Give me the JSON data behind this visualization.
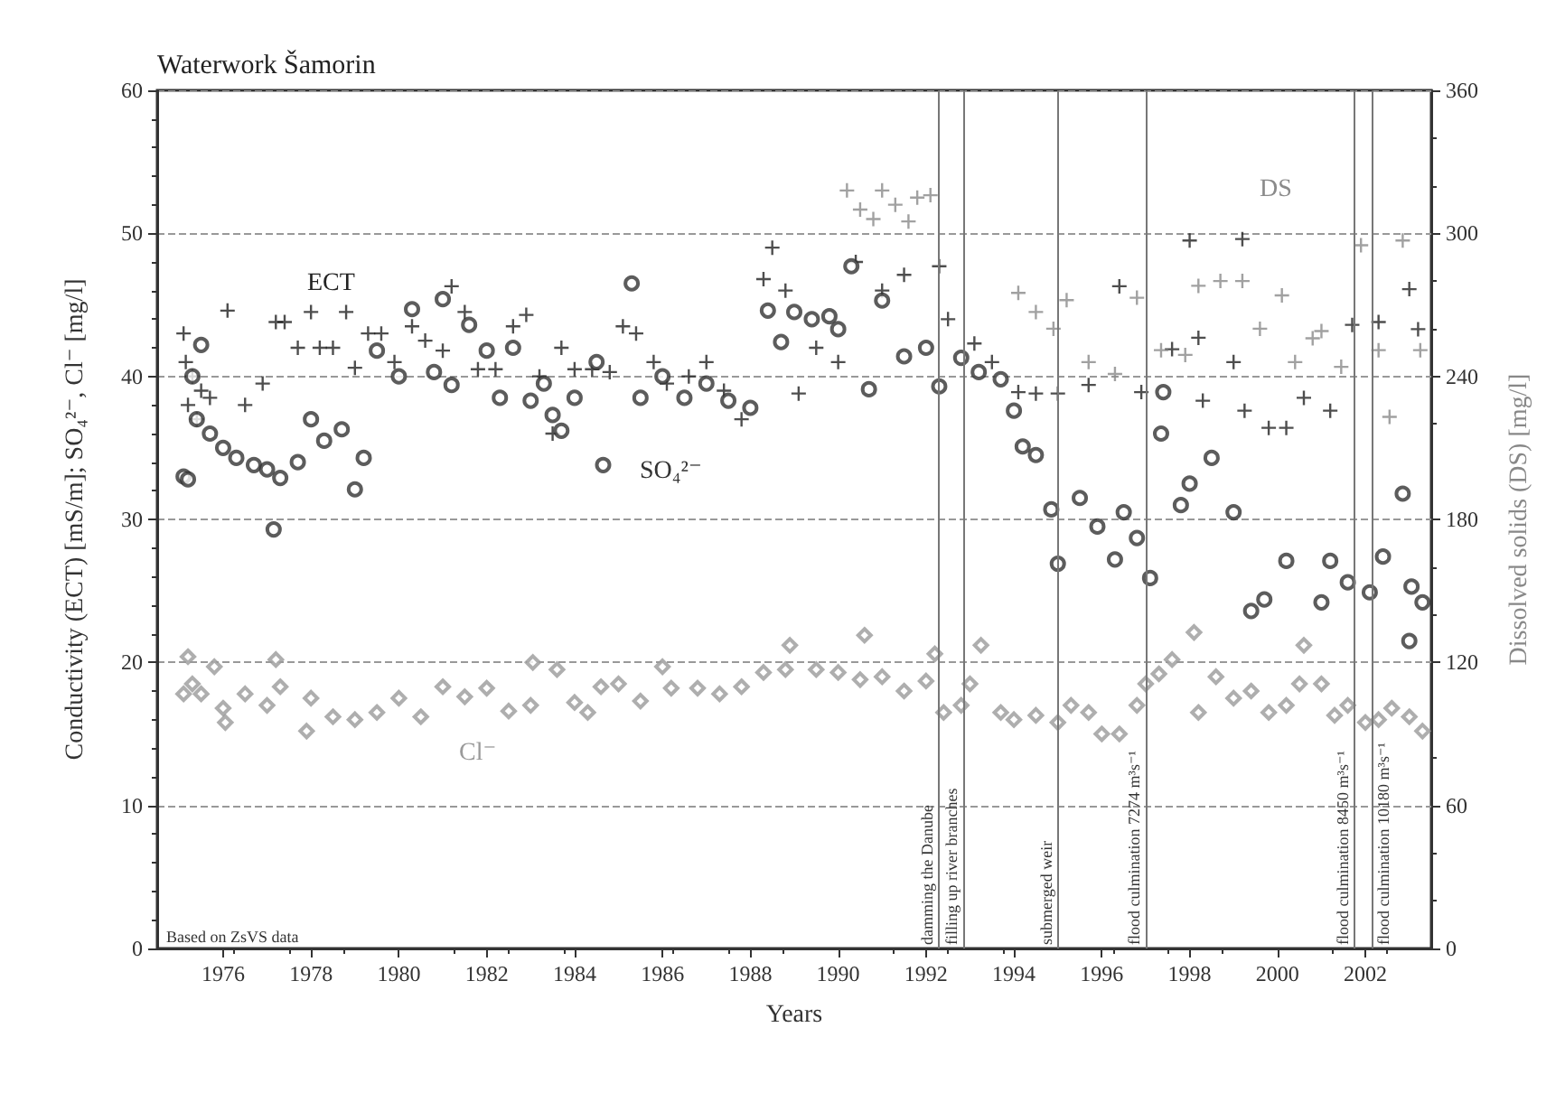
{
  "chart_data": {
    "type": "scatter",
    "title": "Waterwork Šamorin",
    "xlabel": "Years",
    "ylabel": "Conductivity (ECT) [mS/m]; SO₄²⁻, Cl⁻ [mg/l]",
    "y2label": "Dissolved solids (DS) [mg/l]",
    "xlim": [
      1974.5,
      2003.5
    ],
    "xticks": [
      1976,
      1978,
      1980,
      1982,
      1984,
      1986,
      1988,
      1990,
      1992,
      1994,
      1996,
      1998,
      2000,
      2002
    ],
    "ylim": [
      0,
      60
    ],
    "yticks": [
      0,
      10,
      20,
      30,
      40,
      50,
      60
    ],
    "y2lim": [
      0,
      360
    ],
    "y2ticks": [
      0,
      60,
      120,
      180,
      240,
      300,
      360
    ],
    "grid": "y",
    "legend": false,
    "annotations": [
      "Based on ZsVS data"
    ],
    "ref_lines": [
      {
        "axis": "x",
        "value": 1992.3,
        "label": "damming the Danube"
      },
      {
        "axis": "x",
        "value": 1992.85,
        "label": "filling up river branches"
      },
      {
        "axis": "x",
        "value": 1995.0,
        "label": "submerged weir"
      },
      {
        "axis": "x",
        "value": 1997.0,
        "label": "flood culmination 7274 m³s⁻¹"
      },
      {
        "axis": "x",
        "value": 2001.75,
        "label": "flood culmination 8450 m³s⁻¹"
      },
      {
        "axis": "x",
        "value": 2002.15,
        "label": "flood culmination 10180 m³s⁻¹"
      }
    ],
    "series": [
      {
        "name": "ECT",
        "color": "#222222",
        "marker": "cross",
        "x": [
          1975.1,
          1975.15,
          1975.2,
          1975.3,
          1975.4,
          1975.5,
          1975.7,
          1976.1,
          1976.5,
          1976.9,
          1977.2,
          1977.4,
          1977.7,
          1978.0,
          1978.2,
          1978.5,
          1978.8,
          1979.0,
          1979.3,
          1979.6,
          1979.9,
          1980.3,
          1980.6,
          1981.0,
          1981.2,
          1981.5,
          1981.8,
          1982.2,
          1982.6,
          1982.9,
          1983.2,
          1983.5,
          1983.7,
          1984.0,
          1984.4,
          1984.8,
          1985.1,
          1985.4,
          1985.8,
          1986.1,
          1986.6,
          1987.0,
          1987.4,
          1987.8,
          1988.3,
          1988.5,
          1988.8,
          1989.1,
          1989.5,
          1990.0,
          1990.4,
          1991.0,
          1991.5,
          1992.3,
          1992.5,
          1993.1,
          1993.5,
          1994.1,
          1994.5,
          1995.0,
          1995.7,
          1996.4,
          1996.9,
          1997.6,
          1998.0,
          1998.2,
          1998.3,
          1999.0,
          1999.2,
          1999.25,
          1999.8,
          2000.2,
          2000.6,
          2001.2,
          2001.7,
          2002.3,
          2003.0,
          2003.2
        ],
        "values": [
          43,
          41,
          38,
          40,
          37,
          39,
          38.5,
          44.6,
          38,
          39.5,
          43.8,
          43.8,
          42,
          44.5,
          42,
          42,
          44.5,
          40.6,
          43,
          43,
          41,
          43.5,
          42.5,
          41.8,
          46.3,
          44.5,
          40.5,
          40.5,
          43.5,
          44.3,
          40,
          36,
          42,
          40.5,
          40.5,
          40.3,
          43.5,
          43,
          41,
          39.5,
          40,
          41,
          39,
          37,
          46.8,
          49,
          46,
          38.8,
          42,
          41,
          48,
          46,
          47.1,
          47.7,
          44,
          42.3,
          41,
          38.9,
          38.8,
          38.8,
          39.4,
          46.3,
          38.9,
          41.9,
          49.5,
          42.7,
          38.3,
          41,
          49.6,
          37.6,
          36.4,
          36.4,
          38.5,
          37.6,
          43.6,
          43.8,
          46.1,
          43.3
        ]
      },
      {
        "name": "SO₄²⁻",
        "color": "#333333",
        "marker": "circle",
        "x": [
          1975.1,
          1975.2,
          1975.3,
          1975.4,
          1975.5,
          1975.7,
          1976.0,
          1976.3,
          1976.7,
          1977.0,
          1977.15,
          1977.3,
          1977.7,
          1978.0,
          1978.3,
          1978.7,
          1979.0,
          1979.2,
          1979.5,
          1980.0,
          1980.3,
          1980.8,
          1981.0,
          1981.2,
          1981.6,
          1982.0,
          1982.3,
          1982.6,
          1983.0,
          1983.3,
          1983.5,
          1983.7,
          1984.0,
          1984.5,
          1984.65,
          1985.3,
          1985.5,
          1986.0,
          1986.5,
          1987.0,
          1987.5,
          1988.0,
          1988.4,
          1988.7,
          1989.0,
          1989.4,
          1989.8,
          1990.0,
          1990.3,
          1990.7,
          1991.0,
          1991.5,
          1992.0,
          1992.3,
          1992.8,
          1993.2,
          1993.7,
          1994.0,
          1994.2,
          1994.5,
          1994.85,
          1995.0,
          1995.5,
          1995.9,
          1996.3,
          1996.5,
          1996.8,
          1997.1,
          1997.35,
          1997.4,
          1997.8,
          1998.0,
          1998.5,
          1999.0,
          1999.4,
          1999.7,
          2000.2,
          2001.0,
          2001.2,
          2001.6,
          2002.1,
          2002.4,
          2002.85,
          2003.0,
          2003.05,
          2003.3
        ],
        "values": [
          33,
          32.8,
          40,
          37,
          42.2,
          36,
          35,
          34.3,
          33.8,
          33.5,
          29.3,
          32.9,
          34,
          37,
          35.5,
          36.3,
          32.1,
          34.3,
          41.8,
          40,
          44.7,
          40.3,
          45.4,
          39.4,
          43.6,
          41.8,
          38.5,
          42,
          38.3,
          39.5,
          37.3,
          36.2,
          38.5,
          41,
          33.8,
          46.5,
          38.5,
          40,
          38.5,
          39.5,
          38.3,
          37.8,
          44.6,
          42.4,
          44.5,
          44,
          44.2,
          43.3,
          47.7,
          39.1,
          45.3,
          41.4,
          42,
          39.3,
          41.3,
          40.3,
          39.8,
          37.6,
          35.1,
          34.5,
          30.7,
          26.9,
          31.5,
          29.5,
          27.2,
          30.5,
          28.7,
          25.9,
          36,
          38.9,
          31,
          32.5,
          34.3,
          30.5,
          23.6,
          24.4,
          27.1,
          24.2,
          27.1,
          25.6,
          24.9,
          27.4,
          31.8,
          21.5,
          25.3,
          24.2
        ]
      },
      {
        "name": "Cl⁻",
        "color": "#9a9a9a",
        "marker": "diamond",
        "x": [
          1975.1,
          1975.2,
          1975.3,
          1975.5,
          1975.8,
          1976.0,
          1976.05,
          1976.5,
          1977.0,
          1977.2,
          1977.3,
          1978.0,
          1977.9,
          1978.5,
          1979.0,
          1979.5,
          1980.0,
          1980.5,
          1981.0,
          1981.5,
          1982.0,
          1982.5,
          1983.0,
          1983.05,
          1983.6,
          1984.0,
          1984.3,
          1984.6,
          1985.0,
          1985.5,
          1986.0,
          1986.2,
          1986.8,
          1987.3,
          1987.8,
          1988.3,
          1988.8,
          1988.9,
          1989.5,
          1990.0,
          1990.5,
          1990.6,
          1991.0,
          1991.5,
          1992.0,
          1992.2,
          1992.4,
          1992.8,
          1993.0,
          1993.25,
          1993.7,
          1994.0,
          1994.5,
          1995.0,
          1995.3,
          1995.7,
          1996.0,
          1996.4,
          1996.8,
          1997.0,
          1997.3,
          1997.6,
          1998.1,
          1998.2,
          1998.6,
          1999.0,
          1999.4,
          1999.8,
          2000.2,
          2000.5,
          2000.6,
          2001.0,
          2001.3,
          2001.6,
          2002.0,
          2002.3,
          2002.6,
          2003.0,
          2003.3
        ],
        "values": [
          17.8,
          20.4,
          18.5,
          17.8,
          19.7,
          16.8,
          15.8,
          17.8,
          17,
          20.2,
          18.3,
          17.5,
          15.2,
          16.2,
          16,
          16.5,
          17.5,
          16.2,
          18.3,
          17.6,
          18.2,
          16.6,
          17,
          20,
          19.5,
          17.2,
          16.5,
          18.3,
          18.5,
          17.3,
          19.7,
          18.2,
          18.2,
          17.8,
          18.3,
          19.3,
          19.5,
          21.2,
          19.5,
          19.3,
          18.8,
          21.9,
          19,
          18,
          18.7,
          20.6,
          16.5,
          17,
          18.5,
          21.2,
          16.5,
          16,
          16.3,
          15.8,
          17,
          16.5,
          15,
          15,
          17,
          18.5,
          19.2,
          20.2,
          22.1,
          16.5,
          19,
          17.5,
          18,
          16.5,
          17,
          18.5,
          21.2,
          18.5,
          16.3,
          17,
          15.8,
          16,
          16.8,
          16.2,
          15.2
        ]
      },
      {
        "name": "DS",
        "color": "#8a8a8a",
        "marker": "cross",
        "axis": "y2",
        "x": [
          1990.2,
          1990.5,
          1990.8,
          1991.0,
          1991.3,
          1991.6,
          1991.8,
          1992.1,
          1994.1,
          1994.5,
          1994.9,
          1995.2,
          1995.7,
          1996.3,
          1996.8,
          1997.35,
          1997.9,
          1998.2,
          1998.7,
          1999.2,
          1999.6,
          2000.1,
          2000.4,
          2000.8,
          2001.0,
          2001.45,
          2001.9,
          2002.3,
          2002.55,
          2002.85,
          2003.25
        ],
        "values": [
          318,
          310,
          306,
          318,
          312,
          305,
          315,
          316,
          275,
          267,
          260,
          272,
          246,
          241,
          273,
          251,
          249,
          278,
          280,
          280,
          260,
          274,
          246,
          256,
          259,
          244,
          295,
          251,
          223,
          297,
          251
        ]
      }
    ]
  }
}
